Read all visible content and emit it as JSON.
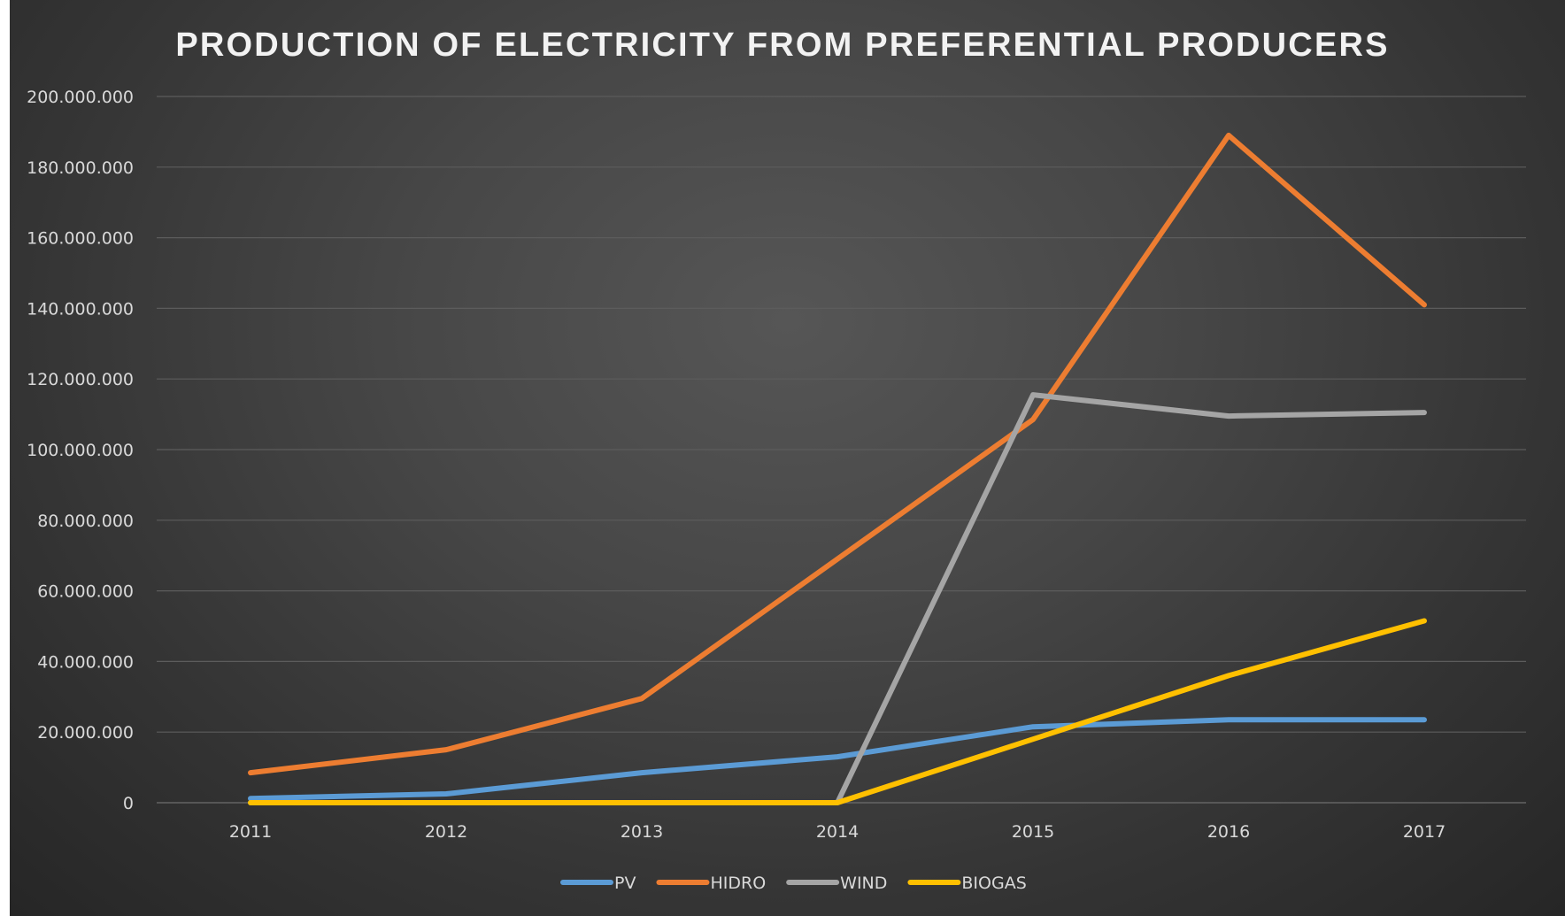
{
  "chart_data": {
    "type": "line",
    "title": "PRODUCTION OF ELECTRICITY FROM PREFERENTIAL PRODUCERS",
    "categories": [
      "2011",
      "2012",
      "2013",
      "2014",
      "2015",
      "2016",
      "2017"
    ],
    "ylim": [
      0,
      200000000
    ],
    "yticks": [
      0,
      20000000,
      40000000,
      60000000,
      80000000,
      100000000,
      120000000,
      140000000,
      160000000,
      180000000,
      200000000
    ],
    "ytick_labels": [
      "0",
      "20.000.000",
      "40.000.000",
      "60.000.000",
      "80.000.000",
      "100.000.000",
      "120.000.000",
      "140.000.000",
      "160.000.000",
      "180.000.000",
      "200.000.000"
    ],
    "grid": true,
    "legend_position": "bottom",
    "series": [
      {
        "name": "PV",
        "color": "#5b9bd5",
        "values": [
          1200000,
          2500000,
          8500000,
          13000000,
          21500000,
          23500000,
          23500000
        ]
      },
      {
        "name": "HIDRO",
        "color": "#ed7d31",
        "values": [
          8500000,
          15000000,
          29500000,
          69000000,
          108500000,
          189000000,
          141000000
        ]
      },
      {
        "name": "WIND",
        "color": "#a5a5a5",
        "values": [
          0,
          0,
          0,
          0,
          115500000,
          109500000,
          110500000
        ]
      },
      {
        "name": "BIOGAS",
        "color": "#ffc000",
        "values": [
          0,
          0,
          0,
          0,
          18000000,
          36000000,
          51500000
        ]
      }
    ]
  }
}
